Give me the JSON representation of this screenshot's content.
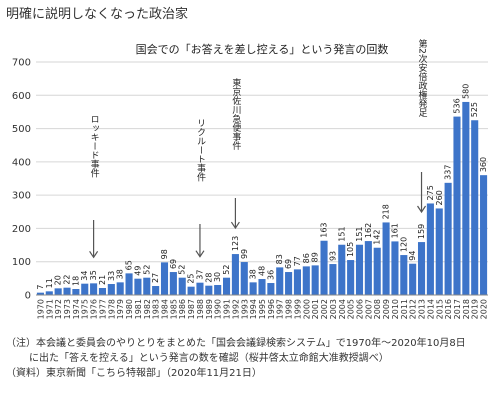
{
  "headline": "明確に説明しなくなった政治家",
  "chart_data": {
    "type": "bar",
    "title": "国会での「お答えを差し控える」という発言の回数",
    "xlabel": "",
    "ylabel": "",
    "ylim": [
      0,
      700
    ],
    "yticks": [
      0,
      100,
      200,
      300,
      400,
      500,
      600,
      700
    ],
    "grid": true,
    "bar_color": "#3d74c9",
    "categories": [
      "1970",
      "1971",
      "1972",
      "1973",
      "1974",
      "1975",
      "1976",
      "1977",
      "1978",
      "1979",
      "1980",
      "1981",
      "1982",
      "1983",
      "1984",
      "1985",
      "1986",
      "1987",
      "1988",
      "1989",
      "1990",
      "1991",
      "1992",
      "1993",
      "1994",
      "1995",
      "1996",
      "1997",
      "1998",
      "1999",
      "2000",
      "2001",
      "2002",
      "2003",
      "2004",
      "2005",
      "2006",
      "2007",
      "2008",
      "2009",
      "2010",
      "2011",
      "2012",
      "2013",
      "2014",
      "2015",
      "2016",
      "2017",
      "2018",
      "2019",
      "2020"
    ],
    "values": [
      7,
      11,
      20,
      22,
      18,
      34,
      35,
      21,
      33,
      38,
      65,
      49,
      52,
      27,
      98,
      69,
      52,
      25,
      37,
      28,
      30,
      52,
      123,
      99,
      38,
      48,
      36,
      83,
      69,
      77,
      86,
      89,
      163,
      93,
      151,
      105,
      151,
      162,
      142,
      218,
      161,
      120,
      94,
      159,
      275,
      260,
      337,
      536,
      580,
      525,
      360
    ],
    "annotations": [
      {
        "text": "ロッキード事件",
        "x": "1976"
      },
      {
        "text": "リクルート事件",
        "x": "1988"
      },
      {
        "text": "東京佐川急便事件",
        "x": "1992"
      },
      {
        "text": "第2次安倍政権発足",
        "x": "2013"
      }
    ]
  },
  "notes": {
    "line1": "（注）本会議と委員会のやりとりをまとめた「国会会議録検索システム」で1970年〜2020年10月8日",
    "line2": "に出た「答えを控える」という発言の数を確認（桜井啓太立命館大准教授調べ）",
    "line3": "（資料）東京新聞「こちら特報部」（2020年11月21日）"
  }
}
